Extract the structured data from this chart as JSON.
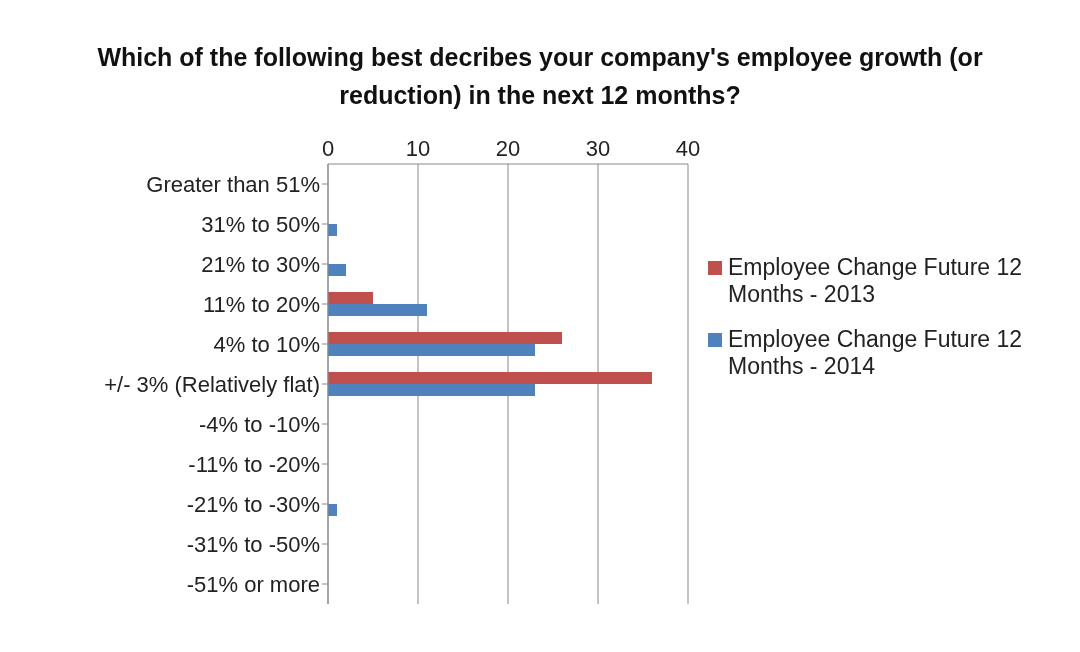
{
  "chart_data": {
    "type": "bar",
    "orientation": "horizontal",
    "title": "Which of the following best decribes your company's employee growth (or reduction) in the next 12 months?",
    "categories": [
      "Greater than 51%",
      "31% to 50%",
      "21% to 30%",
      "11% to 20%",
      "4% to 10%",
      "+/- 3% (Relatively flat)",
      "-4% to -10%",
      "-11% to -20%",
      "-21% to -30%",
      "-31% to -50%",
      "-51% or more"
    ],
    "series": [
      {
        "name": "Employee Change Future 12 Months - 2013",
        "color": "#c0504d",
        "values": [
          0,
          0,
          0,
          5,
          26,
          36,
          0,
          0,
          0,
          0,
          0
        ]
      },
      {
        "name": "Employee Change Future 12 Months - 2014",
        "color": "#4f81bd",
        "values": [
          0,
          1,
          2,
          11,
          23,
          23,
          0,
          0,
          1,
          0,
          0
        ]
      }
    ],
    "xlim": [
      0,
      40
    ],
    "xticks": [
      0,
      10,
      20,
      30,
      40
    ],
    "grid": "x",
    "legend": "right"
  }
}
